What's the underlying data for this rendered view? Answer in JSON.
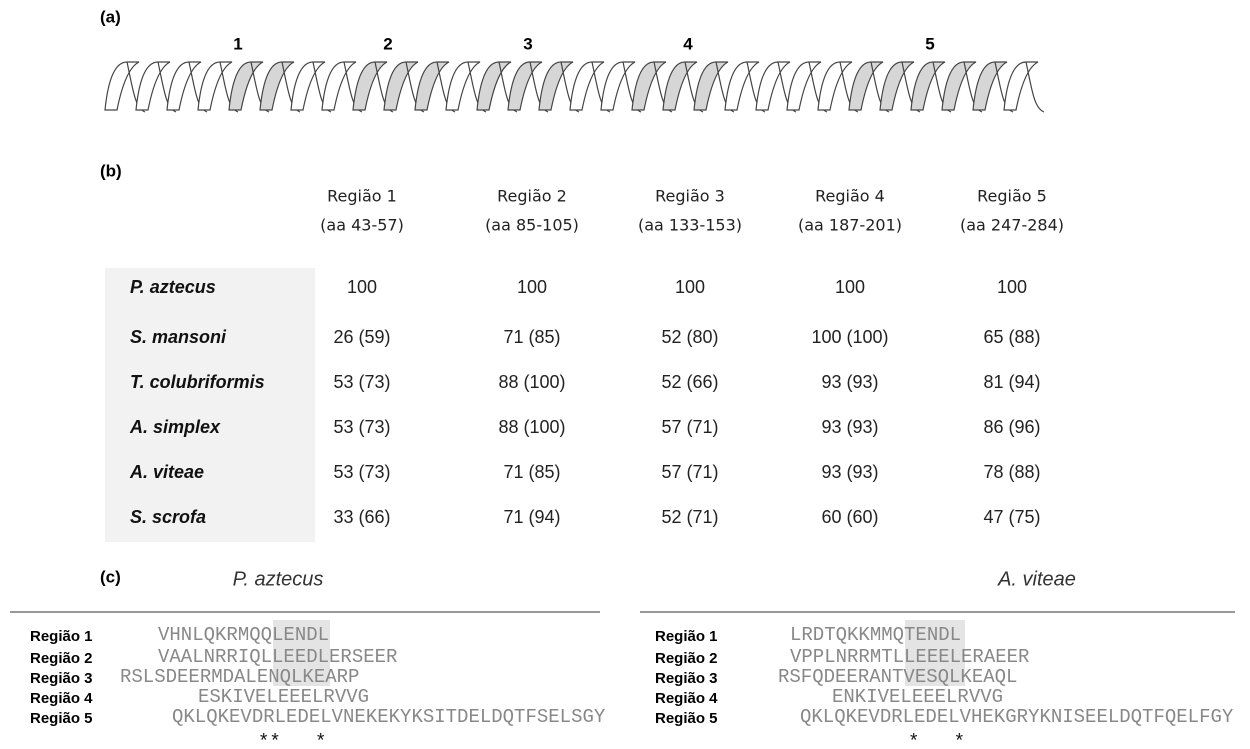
{
  "panel_labels": [
    "(a)",
    "(b)",
    "(c)"
  ],
  "helix": {
    "regions": [
      "1",
      "2",
      "3",
      "4",
      "5"
    ]
  },
  "table": {
    "columns": [
      [
        "Região 1",
        "(aa 43-57)"
      ],
      [
        "Região 2",
        "(aa 85-105)"
      ],
      [
        "Região 3",
        "(aa 133-153)"
      ],
      [
        "Região 4",
        "(aa 187-201)"
      ],
      [
        "Região 5",
        "(aa 247-284)"
      ]
    ],
    "rows": [
      {
        "species": "P. aztecus",
        "values": [
          "100",
          "100",
          "100",
          "100",
          "100"
        ]
      },
      {
        "species": "S. mansoni",
        "values": [
          "26 (59)",
          "71 (85)",
          "52 (80)",
          "100 (100)",
          "65 (88)"
        ]
      },
      {
        "species": "T. colubriformis",
        "values": [
          "53 (73)",
          "88 (100)",
          "52 (66)",
          "93 (93)",
          "81 (94)"
        ]
      },
      {
        "species": "A. simplex",
        "values": [
          "53 (73)",
          "88 (100)",
          "57 (71)",
          "93 (93)",
          "86 (96)"
        ]
      },
      {
        "species": "A. viteae",
        "values": [
          "53 (73)",
          "71 (85)",
          "57 (71)",
          "93 (93)",
          "78 (88)"
        ]
      },
      {
        "species": "S. scrofa",
        "values": [
          "33 (66)",
          "71 (94)",
          "52 (71)",
          "60 (60)",
          "47 (75)"
        ]
      }
    ]
  },
  "alignments": [
    {
      "species": "P. aztecus",
      "rows": [
        {
          "label": "Região 1",
          "sequence": "VHNLQKRMQQLENDL"
        },
        {
          "label": "Região 2",
          "sequence": "VAALNRRIQLLEEDLERSEER"
        },
        {
          "label": "Região 3",
          "sequence": "RSLSDEERMDALENQLKEARP"
        },
        {
          "label": "Região 4",
          "sequence": "ESKIVELEEELRVVG"
        },
        {
          "label": "Região 5",
          "sequence": "QKLQKEVDRLEDELVNEKEKYKSITDELDQTFSELSGY"
        }
      ],
      "stars": "**   *"
    },
    {
      "species": "A. viteae",
      "rows": [
        {
          "label": "Região 1",
          "sequence": "LRDTQKKMMQTENDL"
        },
        {
          "label": "Região 2",
          "sequence": "VPPLNRRMTLLEEELERAEER"
        },
        {
          "label": "Região 3",
          "sequence": "RSFQDEERANTVESQLKEAQL"
        },
        {
          "label": "Região 4",
          "sequence": "ENKIVELEEELRVVG"
        },
        {
          "label": "Região 5",
          "sequence": "QKLQKEVDRLEDELVHEKGRYKNISEELDQTFQELFGY"
        }
      ],
      "stars": "*   *"
    }
  ]
}
